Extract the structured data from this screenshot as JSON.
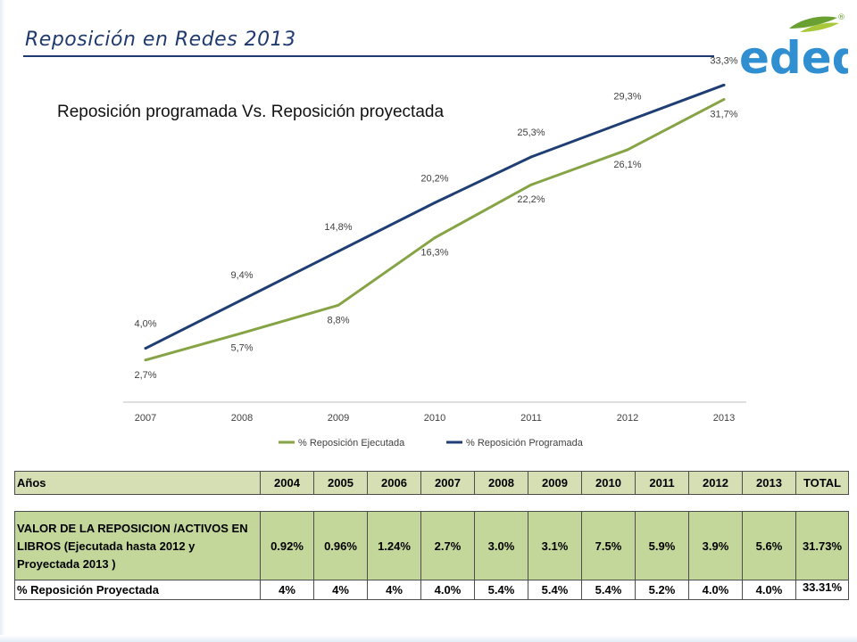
{
  "slide": {
    "title": "Reposición en Redes 2013",
    "subtitle": "Reposición programada Vs. Reposición proyectada"
  },
  "logo": {
    "text": "edeq",
    "mark": "®",
    "color": "#2f8fd0",
    "leaf_colors": [
      "#6aa032",
      "#a8c83a"
    ]
  },
  "chart_data": {
    "type": "line",
    "categories": [
      "2007",
      "2008",
      "2009",
      "2010",
      "2011",
      "2012",
      "2013"
    ],
    "series": [
      {
        "name": "% Reposición Ejecutada",
        "color": "#86a446",
        "values": [
          2.7,
          5.7,
          8.8,
          16.3,
          22.2,
          26.1,
          31.7
        ],
        "labels": [
          "2,7%",
          "5,7%",
          "8,8%",
          "16,3%",
          "22,2%",
          "26,1%",
          "31,7%"
        ]
      },
      {
        "name": "% Reposición Programada",
        "color": "#1f3e74",
        "values": [
          4.0,
          9.4,
          14.8,
          20.2,
          25.3,
          29.3,
          33.3
        ],
        "labels": [
          "4,0%",
          "9,4%",
          "14,8%",
          "20,2%",
          "25,3%",
          "29,3%",
          "33,3%"
        ]
      }
    ],
    "legend": "bottom",
    "grid": false
  },
  "table": {
    "header": [
      "Años",
      "2004",
      "2005",
      "2006",
      "2007",
      "2008",
      "2009",
      "2010",
      "2011",
      "2012",
      "2013",
      "TOTAL"
    ],
    "row1": {
      "label": "VALOR DE LA REPOSICION /ACTIVOS EN LIBROS (Ejecutada hasta 2012 y Proyectada 2013 )",
      "values": [
        "0.92%",
        "0.96%",
        "1.24%",
        "2.7%",
        "3.0%",
        "3.1%",
        "7.5%",
        "5.9%",
        "3.9%",
        "5.6%",
        "31.73%"
      ]
    },
    "row2": {
      "label": "% Reposición Proyectada",
      "values": [
        "4%",
        "4%",
        "4%",
        "4.0%",
        "5.4%",
        "5.4%",
        "5.4%",
        "5.2%",
        "4.0%",
        "4.0%",
        "33.31%"
      ]
    }
  }
}
